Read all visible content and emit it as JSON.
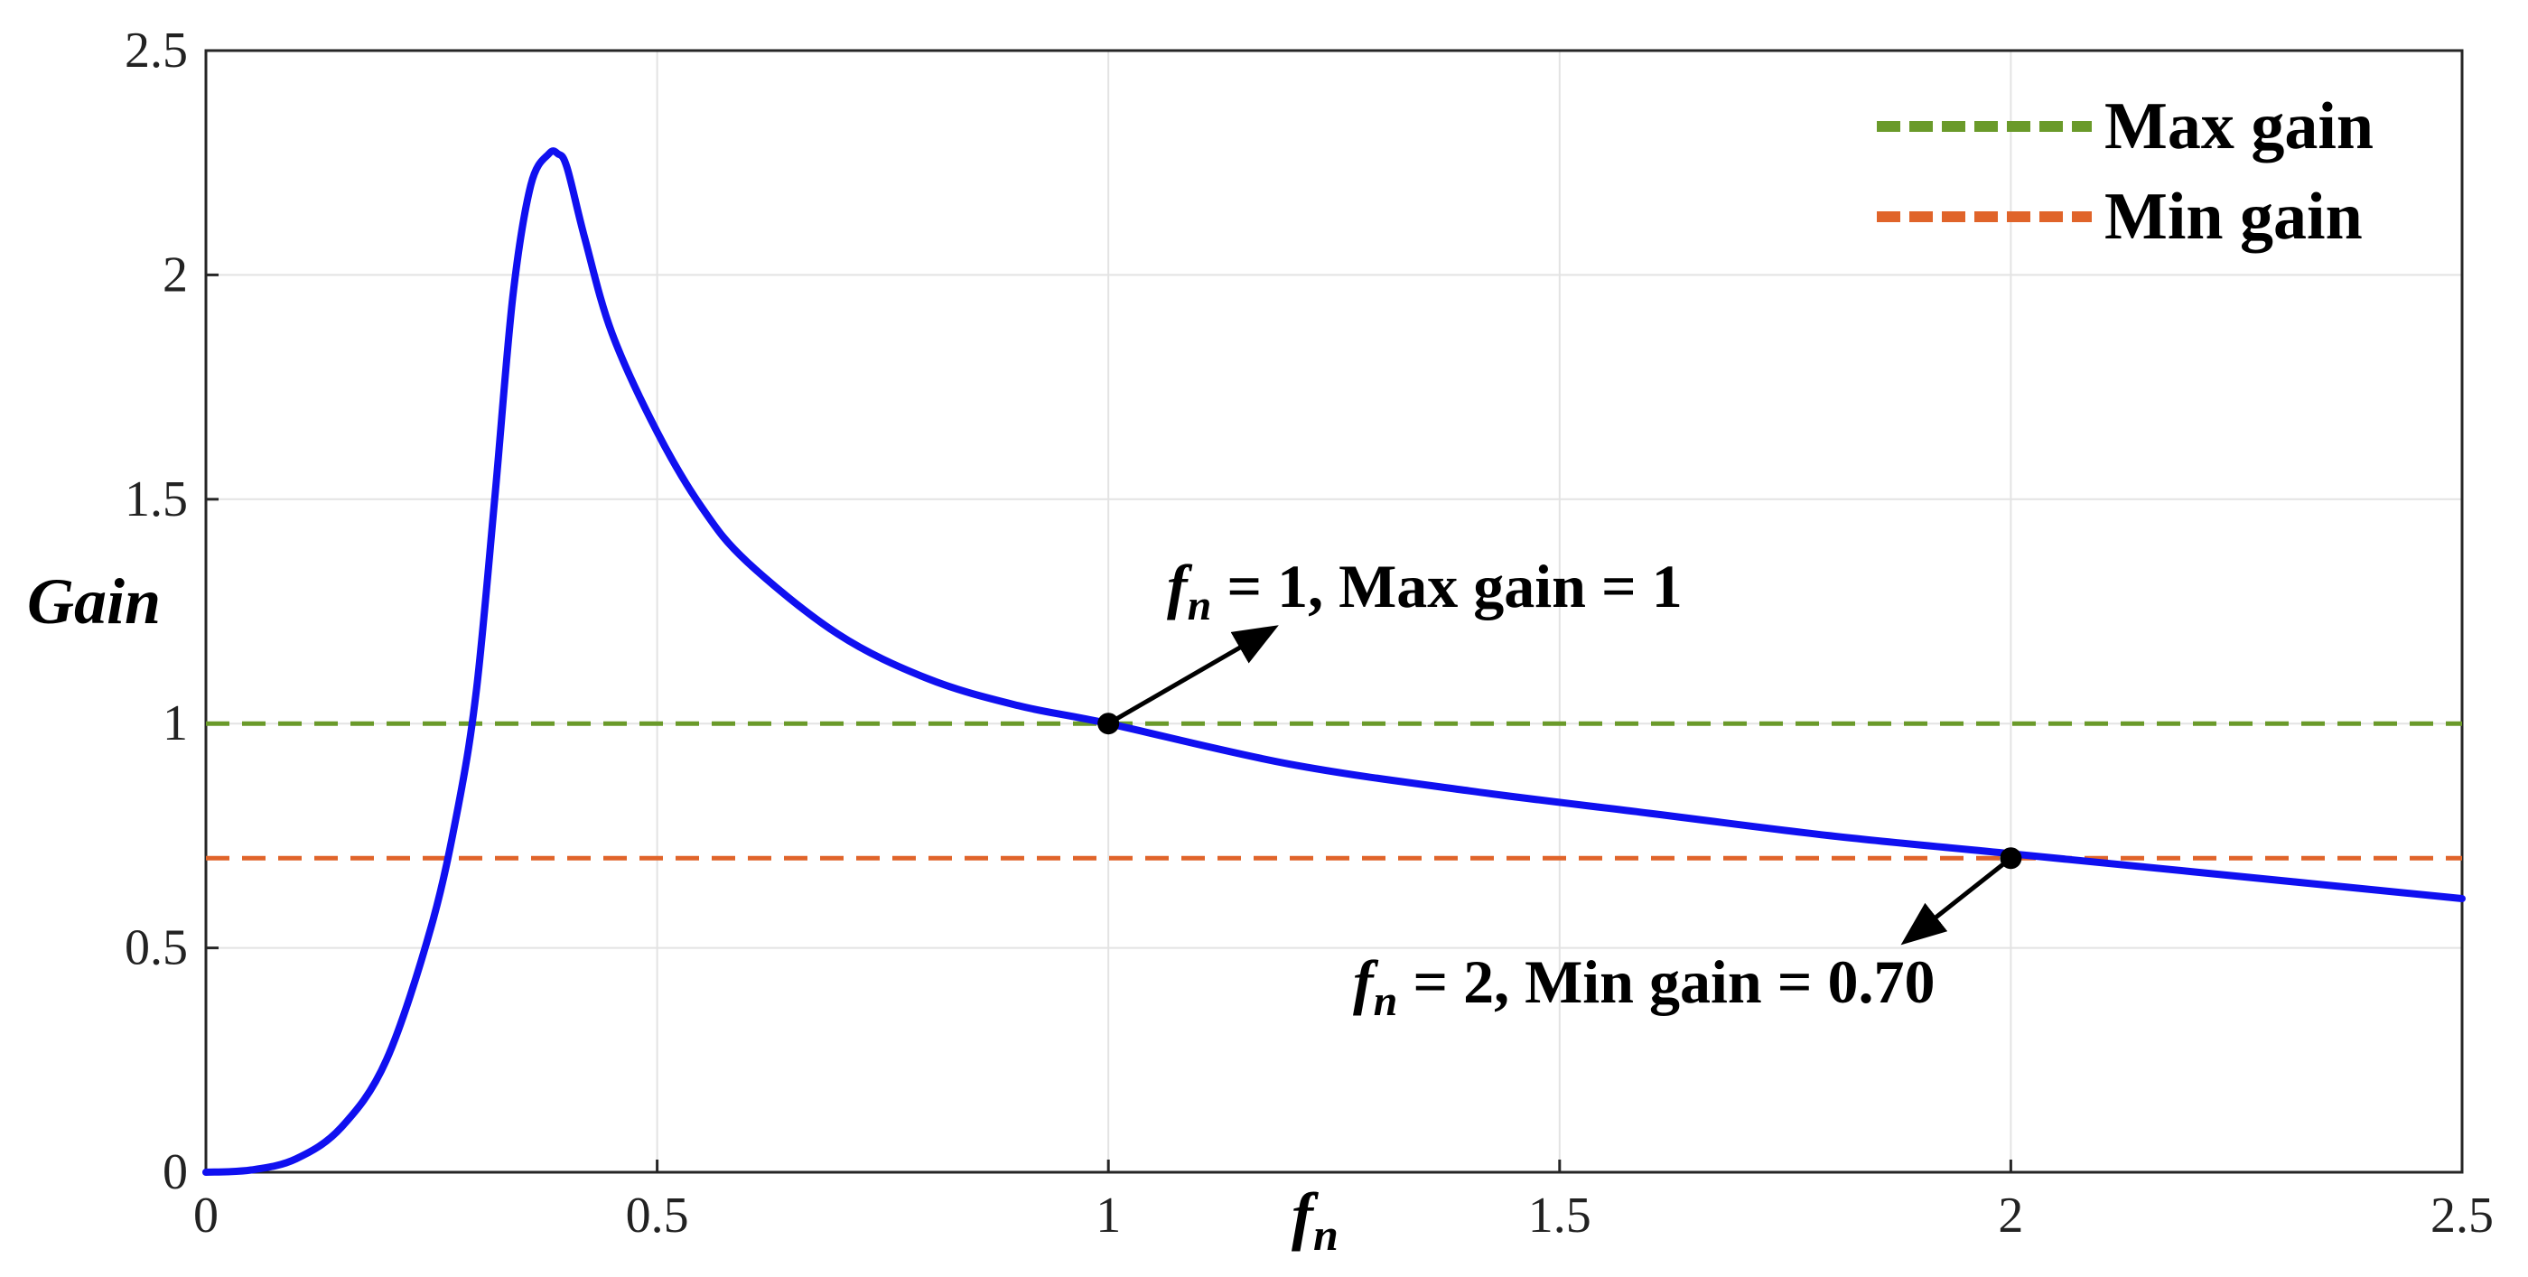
{
  "chart_data": {
    "type": "line",
    "xlabel": "f",
    "xlabel_sub": "n",
    "ylabel": "Gain",
    "xlim": [
      0,
      2.5
    ],
    "ylim": [
      0,
      2.5
    ],
    "xticks": [
      "0",
      "0.5",
      "1",
      "1.5",
      "2",
      "2.5"
    ],
    "yticks": [
      "0",
      "0.5",
      "1",
      "1.5",
      "2",
      "2.5"
    ],
    "grid": true,
    "legend_position": "top-right",
    "series": [
      {
        "color": "#1010f0",
        "style": "solid",
        "x": [
          0,
          0.05,
          0.1,
          0.15,
          0.2,
          0.25,
          0.28,
          0.3,
          0.32,
          0.34,
          0.36,
          0.38,
          0.39,
          0.4,
          0.42,
          0.45,
          0.5,
          0.55,
          0.6,
          0.7,
          0.8,
          0.9,
          1.0,
          1.2,
          1.4,
          1.6,
          1.8,
          2.0,
          2.2,
          2.5
        ],
        "y": [
          0,
          0.005,
          0.03,
          0.1,
          0.25,
          0.55,
          0.82,
          1.08,
          1.5,
          1.95,
          2.2,
          2.27,
          2.27,
          2.24,
          2.08,
          1.87,
          1.65,
          1.48,
          1.36,
          1.2,
          1.1,
          1.04,
          1.0,
          0.91,
          0.85,
          0.8,
          0.75,
          0.71,
          0.67,
          0.61
        ]
      },
      {
        "name": "Max gain",
        "color": "#6a9a2a",
        "style": "dashed",
        "x": [
          0,
          2.5
        ],
        "y": [
          1.0,
          1.0
        ]
      },
      {
        "name": "Min gain",
        "color": "#e0642a",
        "style": "dashed",
        "x": [
          0,
          2.5
        ],
        "y": [
          0.7,
          0.7
        ]
      }
    ],
    "annotations": [
      {
        "point": [
          1,
          1
        ],
        "sym": "f",
        "sub": "n",
        "text": " = 1, Max gain = 1"
      },
      {
        "point": [
          2,
          0.7
        ],
        "sym": "f",
        "sub": "n",
        "text": " = 2, Min gain = 0.70"
      }
    ]
  }
}
